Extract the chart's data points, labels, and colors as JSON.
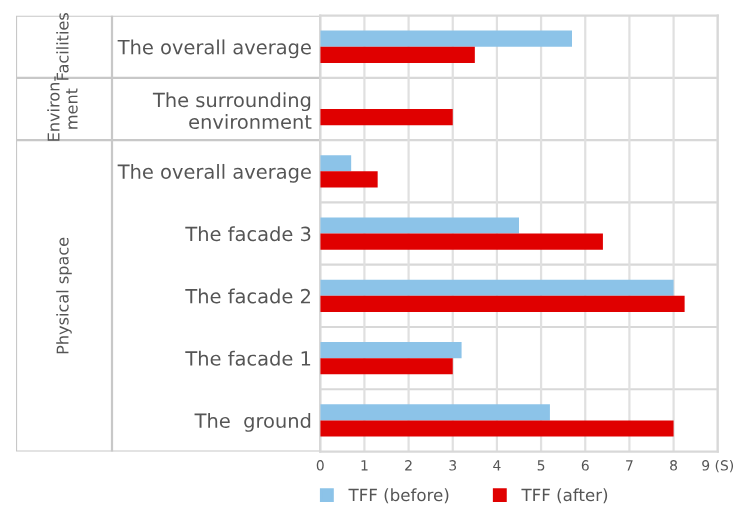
{
  "chart_data": {
    "type": "bar",
    "orientation": "horizontal",
    "categories": [
      "The overall average",
      "The surrounding\nenvironment",
      "The overall average",
      "The facade 3",
      "The facade 2",
      "The facade 1",
      "The  ground"
    ],
    "series": [
      {
        "name": "TFF (before)",
        "color": "#8cc3e8",
        "values": [
          5.7,
          0,
          0.7,
          4.5,
          8.0,
          3.2,
          5.2
        ]
      },
      {
        "name": "TFF (after)",
        "color": "#e00000",
        "values": [
          3.5,
          3.0,
          1.3,
          6.4,
          8.25,
          3.0,
          8.0
        ]
      }
    ],
    "xlim": [
      0,
      9
    ],
    "xticks": [
      0,
      1,
      2,
      3,
      4,
      5,
      6,
      7,
      8,
      {
        "value": 9,
        "label": "9 (S)"
      }
    ],
    "annotations": [
      "Facilities",
      "Environ-\nment",
      "Physical space"
    ],
    "grid": true,
    "legend": "bottom"
  }
}
